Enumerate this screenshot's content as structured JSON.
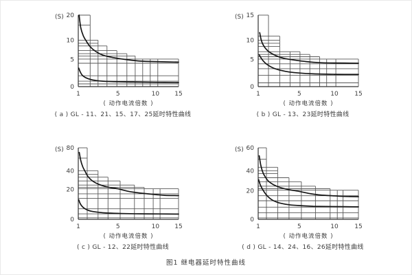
{
  "page": {
    "figure_caption": "图1  继电器延时特性曲线"
  },
  "colors": {
    "background": "#ffffff",
    "grid_line": "#565656",
    "axis_line": "#323232",
    "curve": "#161616",
    "text": "#3c3c3c"
  },
  "chart_data": [
    {
      "id": "a",
      "type": "line",
      "caption": "( a ) GL - 11、21、15、17、25延时特性曲线",
      "xlabel": "( 动作电流倍数 )",
      "ylabel": "(S)",
      "xticks": [
        1,
        5,
        10,
        15
      ],
      "yticks": [
        0,
        5,
        10,
        20
      ],
      "xlim": [
        1,
        15
      ],
      "ylim": [
        0,
        20
      ],
      "x_anchors": [
        [
          1,
          0
        ],
        [
          5,
          0.395
        ],
        [
          10,
          0.77
        ],
        [
          15,
          1
        ]
      ],
      "y_anchors": [
        [
          0,
          1
        ],
        [
          5,
          0.62
        ],
        [
          10,
          0.35
        ],
        [
          20,
          0
        ]
      ],
      "steps": [
        [
          1,
          2.2,
          20
        ],
        [
          2.2,
          3,
          10
        ],
        [
          3,
          3.9,
          8.5
        ],
        [
          3.9,
          4.9,
          7.3
        ],
        [
          4.9,
          6.2,
          6.5
        ],
        [
          6.2,
          7.3,
          5.9
        ],
        [
          7.3,
          15,
          5.1
        ]
      ],
      "hlines": [
        [
          16,
          1,
          2.2
        ],
        [
          9.2,
          1,
          3
        ],
        [
          4.3,
          1,
          15
        ],
        [
          2,
          1,
          15
        ],
        [
          1,
          1,
          15
        ],
        [
          0.5,
          1,
          15
        ]
      ],
      "vlines": [
        [
          8.3,
          5.1
        ],
        [
          9.3,
          5.1
        ],
        [
          10.5,
          5.1
        ]
      ],
      "series": [
        {
          "name": "upper-limit-curve",
          "points": [
            [
              1.08,
              20
            ],
            [
              1.25,
              15
            ],
            [
              1.5,
              11.8
            ],
            [
              1.8,
              9.8
            ],
            [
              2.2,
              8.3
            ],
            [
              2.8,
              7
            ],
            [
              3.5,
              6.1
            ],
            [
              4.5,
              5.5
            ],
            [
              6,
              5
            ],
            [
              8,
              4.7
            ],
            [
              10,
              4.6
            ],
            [
              15,
              4.5
            ]
          ]
        },
        {
          "name": "lower-limit-curve",
          "points": [
            [
              1.05,
              3.4
            ],
            [
              1.2,
              2.7
            ],
            [
              1.4,
              2.1
            ],
            [
              1.7,
              1.7
            ],
            [
              2.1,
              1.4
            ],
            [
              2.7,
              1.15
            ],
            [
              3.5,
              1
            ],
            [
              5,
              0.9
            ],
            [
              7,
              0.83
            ],
            [
              10,
              0.78
            ],
            [
              15,
              0.75
            ]
          ]
        }
      ]
    },
    {
      "id": "b",
      "type": "line",
      "caption": "( b ) GL - 13、23延时特性曲线",
      "xlabel": "( 动作电流倍数 )",
      "ylabel": "(S)",
      "xticks": [
        1,
        5,
        10,
        15
      ],
      "yticks": [
        0,
        5,
        10,
        15
      ],
      "xlim": [
        1,
        15
      ],
      "ylim": [
        0,
        15
      ],
      "x_anchors": [
        [
          1,
          0
        ],
        [
          5,
          0.41
        ],
        [
          10,
          0.76
        ],
        [
          15,
          1
        ]
      ],
      "y_anchors": [
        [
          0,
          1
        ],
        [
          5,
          0.62
        ],
        [
          10,
          0.35
        ],
        [
          15,
          0
        ]
      ],
      "steps": [
        [
          1,
          2,
          15
        ],
        [
          2,
          3.1,
          10.8
        ],
        [
          3.1,
          5.1,
          7
        ],
        [
          5.1,
          6.5,
          6.3
        ],
        [
          6.5,
          7.9,
          5.7
        ],
        [
          7.9,
          15,
          5.1
        ]
      ],
      "hlines": [
        [
          10,
          1,
          3.1
        ],
        [
          9.2,
          1,
          3.1
        ],
        [
          8.4,
          1,
          3.1
        ],
        [
          4.2,
          1,
          15
        ],
        [
          3.3,
          1,
          15
        ],
        [
          2.1,
          1,
          15
        ],
        [
          0.7,
          1,
          15
        ]
      ],
      "vlines": [
        [
          4.1,
          7
        ],
        [
          8.9,
          5.1
        ],
        [
          10.3,
          5.1
        ]
      ],
      "series": [
        {
          "name": "upper-limit-curve",
          "points": [
            [
              1.15,
              11.5
            ],
            [
              1.3,
              10
            ],
            [
              1.5,
              8.7
            ],
            [
              1.8,
              7.6
            ],
            [
              2.2,
              6.7
            ],
            [
              2.8,
              5.9
            ],
            [
              3.5,
              5.3
            ],
            [
              4.5,
              4.9
            ],
            [
              6,
              4.6
            ],
            [
              8,
              4.4
            ],
            [
              10,
              4.35
            ],
            [
              15,
              4.3
            ]
          ]
        },
        {
          "name": "lower-limit-curve",
          "points": [
            [
              1.1,
              6.2
            ],
            [
              1.3,
              5.3
            ],
            [
              1.6,
              4.5
            ],
            [
              2,
              3.9
            ],
            [
              2.5,
              3.4
            ],
            [
              3.2,
              3
            ],
            [
              4,
              2.7
            ],
            [
              5,
              2.5
            ],
            [
              7,
              2.35
            ],
            [
              10,
              2.27
            ],
            [
              15,
              2.25
            ]
          ]
        }
      ]
    },
    {
      "id": "c",
      "type": "line",
      "caption": "( c ) GL - 12、22延时特性曲线",
      "xlabel": "( 动作电流倍数 )",
      "ylabel": "(S)",
      "xticks": [
        1,
        5,
        10,
        15
      ],
      "yticks": [
        0,
        20,
        40,
        80
      ],
      "xlim": [
        1,
        15
      ],
      "ylim": [
        0,
        80
      ],
      "x_anchors": [
        [
          1,
          0
        ],
        [
          5,
          0.395
        ],
        [
          10,
          0.77
        ],
        [
          15,
          1
        ]
      ],
      "y_anchors": [
        [
          0,
          1
        ],
        [
          20,
          0.58
        ],
        [
          40,
          0.32
        ],
        [
          80,
          0
        ]
      ],
      "steps": [
        [
          1,
          1.9,
          80
        ],
        [
          1.9,
          3,
          40
        ],
        [
          3,
          4,
          33
        ],
        [
          4,
          5.3,
          29
        ],
        [
          5.3,
          7.2,
          24.5
        ],
        [
          7.2,
          8.5,
          22
        ],
        [
          8.5,
          15,
          20.5
        ]
      ],
      "hlines": [
        [
          62,
          1,
          1.9
        ],
        [
          36,
          1,
          3
        ],
        [
          17,
          1,
          15
        ],
        [
          14,
          1,
          15
        ],
        [
          7,
          1,
          15
        ],
        [
          3.6,
          1,
          15
        ],
        [
          1,
          1,
          15
        ]
      ],
      "vlines": [
        [
          9.7,
          20.5
        ],
        [
          11,
          20.5
        ]
      ],
      "series": [
        {
          "name": "upper-limit-curve",
          "points": [
            [
              1.1,
              72
            ],
            [
              1.25,
              58
            ],
            [
              1.45,
              47
            ],
            [
              1.7,
              39
            ],
            [
              2,
              33.5
            ],
            [
              2.5,
              28.5
            ],
            [
              3.2,
              24.8
            ],
            [
              4,
              22.3
            ],
            [
              5,
              20.5
            ],
            [
              6.5,
              18.5
            ],
            [
              8,
              17.5
            ],
            [
              10,
              16.5
            ],
            [
              12,
              16
            ],
            [
              15,
              15.8
            ]
          ]
        },
        {
          "name": "lower-limit-curve",
          "points": [
            [
              1.05,
              13
            ],
            [
              1.2,
              10.4
            ],
            [
              1.45,
              8.2
            ],
            [
              1.8,
              6.6
            ],
            [
              2.3,
              5.4
            ],
            [
              3,
              4.7
            ],
            [
              4,
              4.15
            ],
            [
              5.5,
              3.85
            ],
            [
              8,
              3.65
            ],
            [
              11,
              3.55
            ],
            [
              15,
              3.5
            ]
          ]
        }
      ]
    },
    {
      "id": "d",
      "type": "line",
      "caption": "( d ) GL - 14、24、16、26延时特性曲线",
      "xlabel": "( 动作电流倍数 )",
      "ylabel": "(S)",
      "xticks": [
        1,
        5,
        10,
        15
      ],
      "yticks": [
        0,
        20,
        40,
        60
      ],
      "xlim": [
        1,
        15
      ],
      "ylim": [
        0,
        60
      ],
      "x_anchors": [
        [
          1,
          0
        ],
        [
          5,
          0.41
        ],
        [
          10,
          0.76
        ],
        [
          15,
          1
        ]
      ],
      "y_anchors": [
        [
          0,
          1
        ],
        [
          20,
          0.6
        ],
        [
          40,
          0.32
        ],
        [
          60,
          0
        ]
      ],
      "steps": [
        [
          1,
          1.8,
          60
        ],
        [
          1.8,
          2.9,
          43
        ],
        [
          2.9,
          4,
          33
        ],
        [
          4,
          5.3,
          29
        ],
        [
          5.3,
          7.3,
          24.5
        ],
        [
          7.3,
          9.4,
          22
        ],
        [
          9.4,
          15,
          20.5
        ]
      ],
      "hlines": [
        [
          50,
          1,
          1.8
        ],
        [
          40,
          1,
          2.9
        ],
        [
          37,
          1,
          2.9
        ],
        [
          16.5,
          1,
          15
        ],
        [
          13,
          1,
          15
        ],
        [
          8.5,
          1,
          15
        ],
        [
          4.5,
          1,
          15
        ],
        [
          1,
          1,
          15
        ]
      ],
      "vlines": [
        [
          10.6,
          20.5
        ],
        [
          11.8,
          20.5
        ]
      ],
      "series": [
        {
          "name": "upper-limit-curve",
          "points": [
            [
              1.1,
              53
            ],
            [
              1.25,
              45
            ],
            [
              1.45,
              38.5
            ],
            [
              1.7,
              33.5
            ],
            [
              2,
              29.5
            ],
            [
              2.5,
              26
            ],
            [
              3.2,
              23
            ],
            [
              4,
              21
            ],
            [
              5,
              19.5
            ],
            [
              6.5,
              18
            ],
            [
              8,
              17
            ],
            [
              10,
              16.4
            ],
            [
              12,
              16
            ],
            [
              15,
              15.8
            ]
          ]
        },
        {
          "name": "lower-limit-curve",
          "points": [
            [
              1.05,
              31
            ],
            [
              1.2,
              26
            ],
            [
              1.45,
              21
            ],
            [
              1.8,
              17
            ],
            [
              2.3,
              13.8
            ],
            [
              3,
              11.6
            ],
            [
              4,
              10.2
            ],
            [
              5,
              9.6
            ],
            [
              7,
              9.1
            ],
            [
              10,
              8.9
            ],
            [
              15,
              8.7
            ]
          ]
        }
      ]
    }
  ]
}
